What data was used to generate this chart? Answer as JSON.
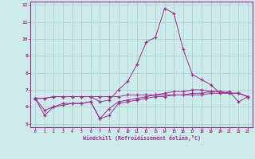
{
  "x_values": [
    0,
    1,
    2,
    3,
    4,
    5,
    6,
    7,
    8,
    9,
    10,
    11,
    12,
    13,
    14,
    15,
    16,
    17,
    18,
    19,
    20,
    21,
    22,
    23
  ],
  "line1": [
    6.5,
    6.5,
    6.6,
    6.6,
    6.6,
    6.6,
    6.6,
    6.3,
    6.4,
    7.0,
    7.5,
    8.5,
    9.8,
    10.1,
    11.8,
    11.5,
    9.4,
    7.9,
    7.6,
    7.3,
    6.8,
    6.9,
    6.3,
    6.6
  ],
  "line2": [
    6.5,
    5.5,
    6.0,
    6.2,
    6.2,
    6.2,
    6.3,
    5.3,
    5.5,
    6.2,
    6.3,
    6.4,
    6.5,
    6.6,
    6.6,
    6.7,
    6.7,
    6.8,
    6.8,
    6.9,
    6.9,
    6.8,
    6.8,
    6.6
  ],
  "line3": [
    6.5,
    5.8,
    6.0,
    6.1,
    6.2,
    6.2,
    6.3,
    5.3,
    5.9,
    6.3,
    6.4,
    6.5,
    6.6,
    6.7,
    6.8,
    6.9,
    6.9,
    7.0,
    7.0,
    6.9,
    6.9,
    6.8,
    6.8,
    6.6
  ],
  "line4": [
    6.5,
    6.5,
    6.6,
    6.6,
    6.6,
    6.6,
    6.6,
    6.6,
    6.6,
    6.6,
    6.7,
    6.7,
    6.7,
    6.7,
    6.7,
    6.7,
    6.7,
    6.7,
    6.7,
    6.8,
    6.8,
    6.8,
    6.8,
    6.6
  ],
  "line_color": "#9b2d8e",
  "bg_color": "#cceaea",
  "grid_color": "#aacccc",
  "xlabel": "Windchill (Refroidissement éolien,°C)",
  "ylim": [
    4.8,
    12.2
  ],
  "xlim": [
    -0.5,
    23.5
  ],
  "yticks": [
    5,
    6,
    7,
    8,
    9,
    10,
    11,
    12
  ],
  "xticks": [
    0,
    1,
    2,
    3,
    4,
    5,
    6,
    7,
    8,
    9,
    10,
    11,
    12,
    13,
    14,
    15,
    16,
    17,
    18,
    19,
    20,
    21,
    22,
    23
  ]
}
